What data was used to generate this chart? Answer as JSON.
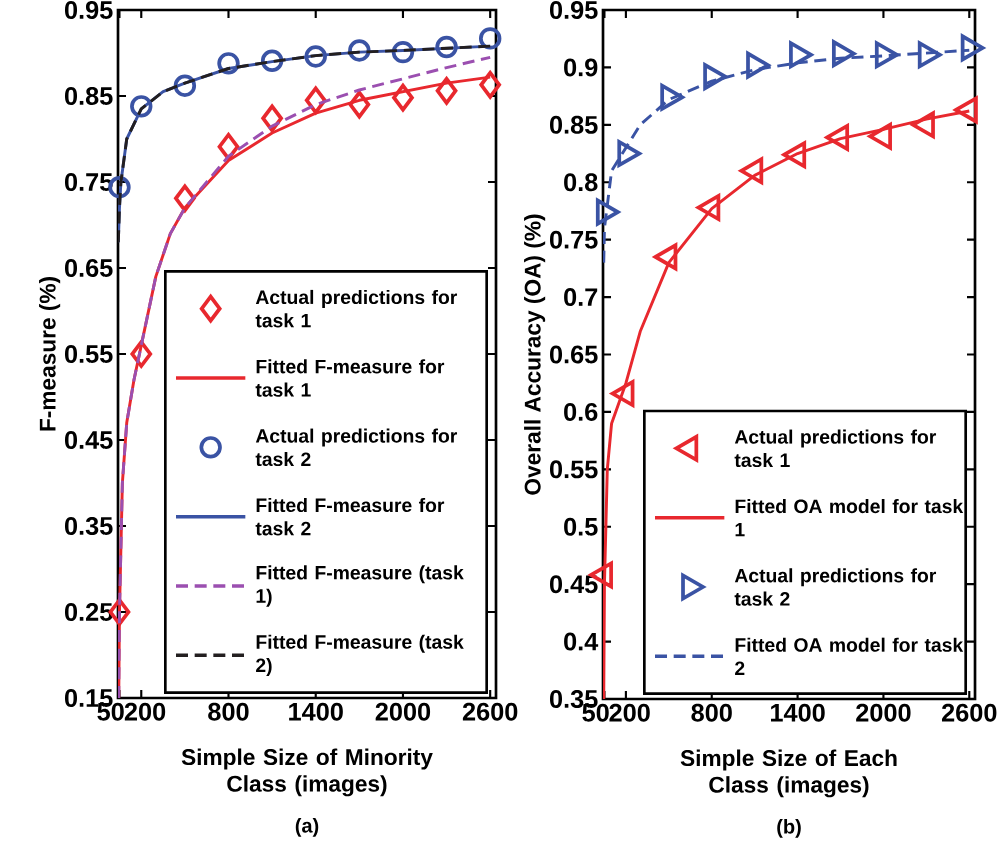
{
  "chart_data": [
    {
      "type": "line",
      "xlabel": "Simple Size of Minority Class (images)",
      "ylabel": "F-measure (%)",
      "annotations": [
        "(a)"
      ],
      "xlim": [
        40,
        2640
      ],
      "ylim": [
        0.15,
        0.95
      ],
      "xticks": [
        50,
        200,
        800,
        1400,
        2000,
        2600
      ],
      "yticks": [
        0.15,
        0.25,
        0.35,
        0.45,
        0.55,
        0.65,
        0.75,
        0.85,
        0.95
      ],
      "legend": "bottom right",
      "grid": false,
      "series": [
        {
          "name": "Actual predictions for task 1",
          "type": "scatter",
          "marker": "diamond",
          "color": "#e8282e",
          "x": [
            50,
            200,
            500,
            800,
            1100,
            1400,
            1700,
            2000,
            2300,
            2600
          ],
          "values": [
            0.25,
            0.55,
            0.731,
            0.791,
            0.824,
            0.845,
            0.84,
            0.848,
            0.856,
            0.863
          ]
        },
        {
          "name": "Fitted F-measure for task 1",
          "type": "line",
          "line_style": "solid",
          "color": "#e8282e",
          "x": [
            45,
            50,
            70,
            100,
            150,
            200,
            300,
            400,
            500,
            800,
            1100,
            1400,
            1700,
            2000,
            2300,
            2600
          ],
          "values": [
            0.15,
            0.25,
            0.4,
            0.47,
            0.52,
            0.56,
            0.64,
            0.69,
            0.72,
            0.775,
            0.807,
            0.83,
            0.845,
            0.855,
            0.865,
            0.872
          ]
        },
        {
          "name": "Actual predictions for task 2",
          "type": "scatter",
          "marker": "circle",
          "color": "#3a53a4",
          "x": [
            50,
            200,
            500,
            800,
            1100,
            1400,
            1700,
            2000,
            2300,
            2600
          ],
          "values": [
            0.744,
            0.838,
            0.862,
            0.888,
            0.891,
            0.896,
            0.903,
            0.901,
            0.907,
            0.917
          ]
        },
        {
          "name": "Fitted F-measure for task 2",
          "type": "line",
          "line_style": "solid",
          "color": "#3a53a4",
          "x": [
            42,
            50,
            60,
            100,
            200,
            350,
            500,
            800,
            1100,
            1400,
            1700,
            2000,
            2600
          ],
          "values": [
            0.68,
            0.72,
            0.75,
            0.8,
            0.835,
            0.855,
            0.865,
            0.882,
            0.89,
            0.897,
            0.901,
            0.903,
            0.908
          ]
        },
        {
          "name": "Fitted F-measure (task 1)",
          "type": "line",
          "line_style": "dashed",
          "color": "#9b4fb0",
          "x": [
            45,
            50,
            70,
            100,
            150,
            200,
            300,
            400,
            500,
            800,
            1100,
            1400,
            1700,
            2000,
            2300,
            2600
          ],
          "values": [
            0.15,
            0.25,
            0.4,
            0.47,
            0.52,
            0.56,
            0.64,
            0.69,
            0.72,
            0.78,
            0.815,
            0.84,
            0.857,
            0.87,
            0.883,
            0.895
          ]
        },
        {
          "name": "Fitted F-measure (task 2)",
          "type": "line",
          "line_style": "dashed",
          "color": "#231f20",
          "x": [
            42,
            50,
            60,
            100,
            200,
            350,
            500,
            800,
            1100,
            1400,
            1700,
            2000,
            2600
          ],
          "values": [
            0.68,
            0.72,
            0.75,
            0.8,
            0.835,
            0.855,
            0.865,
            0.882,
            0.89,
            0.897,
            0.901,
            0.903,
            0.908
          ]
        }
      ]
    },
    {
      "type": "line",
      "xlabel": "Simple Size of Each Class (images)",
      "ylabel": "Overall Accuracy (OA) (%)",
      "annotations": [
        "(b)"
      ],
      "xlim": [
        40,
        2640
      ],
      "ylim": [
        0.35,
        0.95
      ],
      "xticks": [
        50,
        200,
        800,
        1400,
        2000,
        2600
      ],
      "yticks": [
        0.35,
        0.4,
        0.45,
        0.5,
        0.55,
        0.6,
        0.65,
        0.7,
        0.75,
        0.8,
        0.85,
        0.9,
        0.95
      ],
      "legend": "bottom right",
      "grid": false,
      "series": [
        {
          "name": "Actual predictions for task 1",
          "type": "scatter",
          "marker": "triangle-left",
          "color": "#e8282e",
          "x": [
            50,
            200,
            500,
            800,
            1100,
            1400,
            1700,
            2000,
            2300,
            2600
          ],
          "values": [
            0.458,
            0.616,
            0.735,
            0.778,
            0.81,
            0.824,
            0.839,
            0.84,
            0.85,
            0.863
          ]
        },
        {
          "name": "Fitted OA model for task 1",
          "type": "line",
          "line_style": "solid",
          "color": "#e8282e",
          "x": [
            45,
            50,
            70,
            100,
            200,
            300,
            500,
            800,
            1100,
            1400,
            1700,
            2000,
            2300,
            2600
          ],
          "values": [
            0.35,
            0.45,
            0.55,
            0.59,
            0.625,
            0.67,
            0.73,
            0.777,
            0.806,
            0.825,
            0.838,
            0.846,
            0.855,
            0.862
          ]
        },
        {
          "name": "Actual predictions for task 2",
          "type": "scatter",
          "marker": "triangle-right",
          "color": "#3a53a4",
          "x": [
            50,
            200,
            500,
            800,
            1100,
            1400,
            1700,
            2000,
            2300,
            2600
          ],
          "values": [
            0.774,
            0.825,
            0.874,
            0.892,
            0.902,
            0.911,
            0.912,
            0.911,
            0.911,
            0.917
          ]
        },
        {
          "name": "Fitted OA model for task 2",
          "type": "line",
          "line_style": "dashed",
          "color": "#3a53a4",
          "x": [
            45,
            50,
            100,
            200,
            300,
            500,
            800,
            1100,
            1400,
            1700,
            2000,
            2600
          ],
          "values": [
            0.73,
            0.76,
            0.81,
            0.83,
            0.85,
            0.872,
            0.888,
            0.898,
            0.904,
            0.908,
            0.91,
            0.915
          ]
        }
      ]
    }
  ]
}
